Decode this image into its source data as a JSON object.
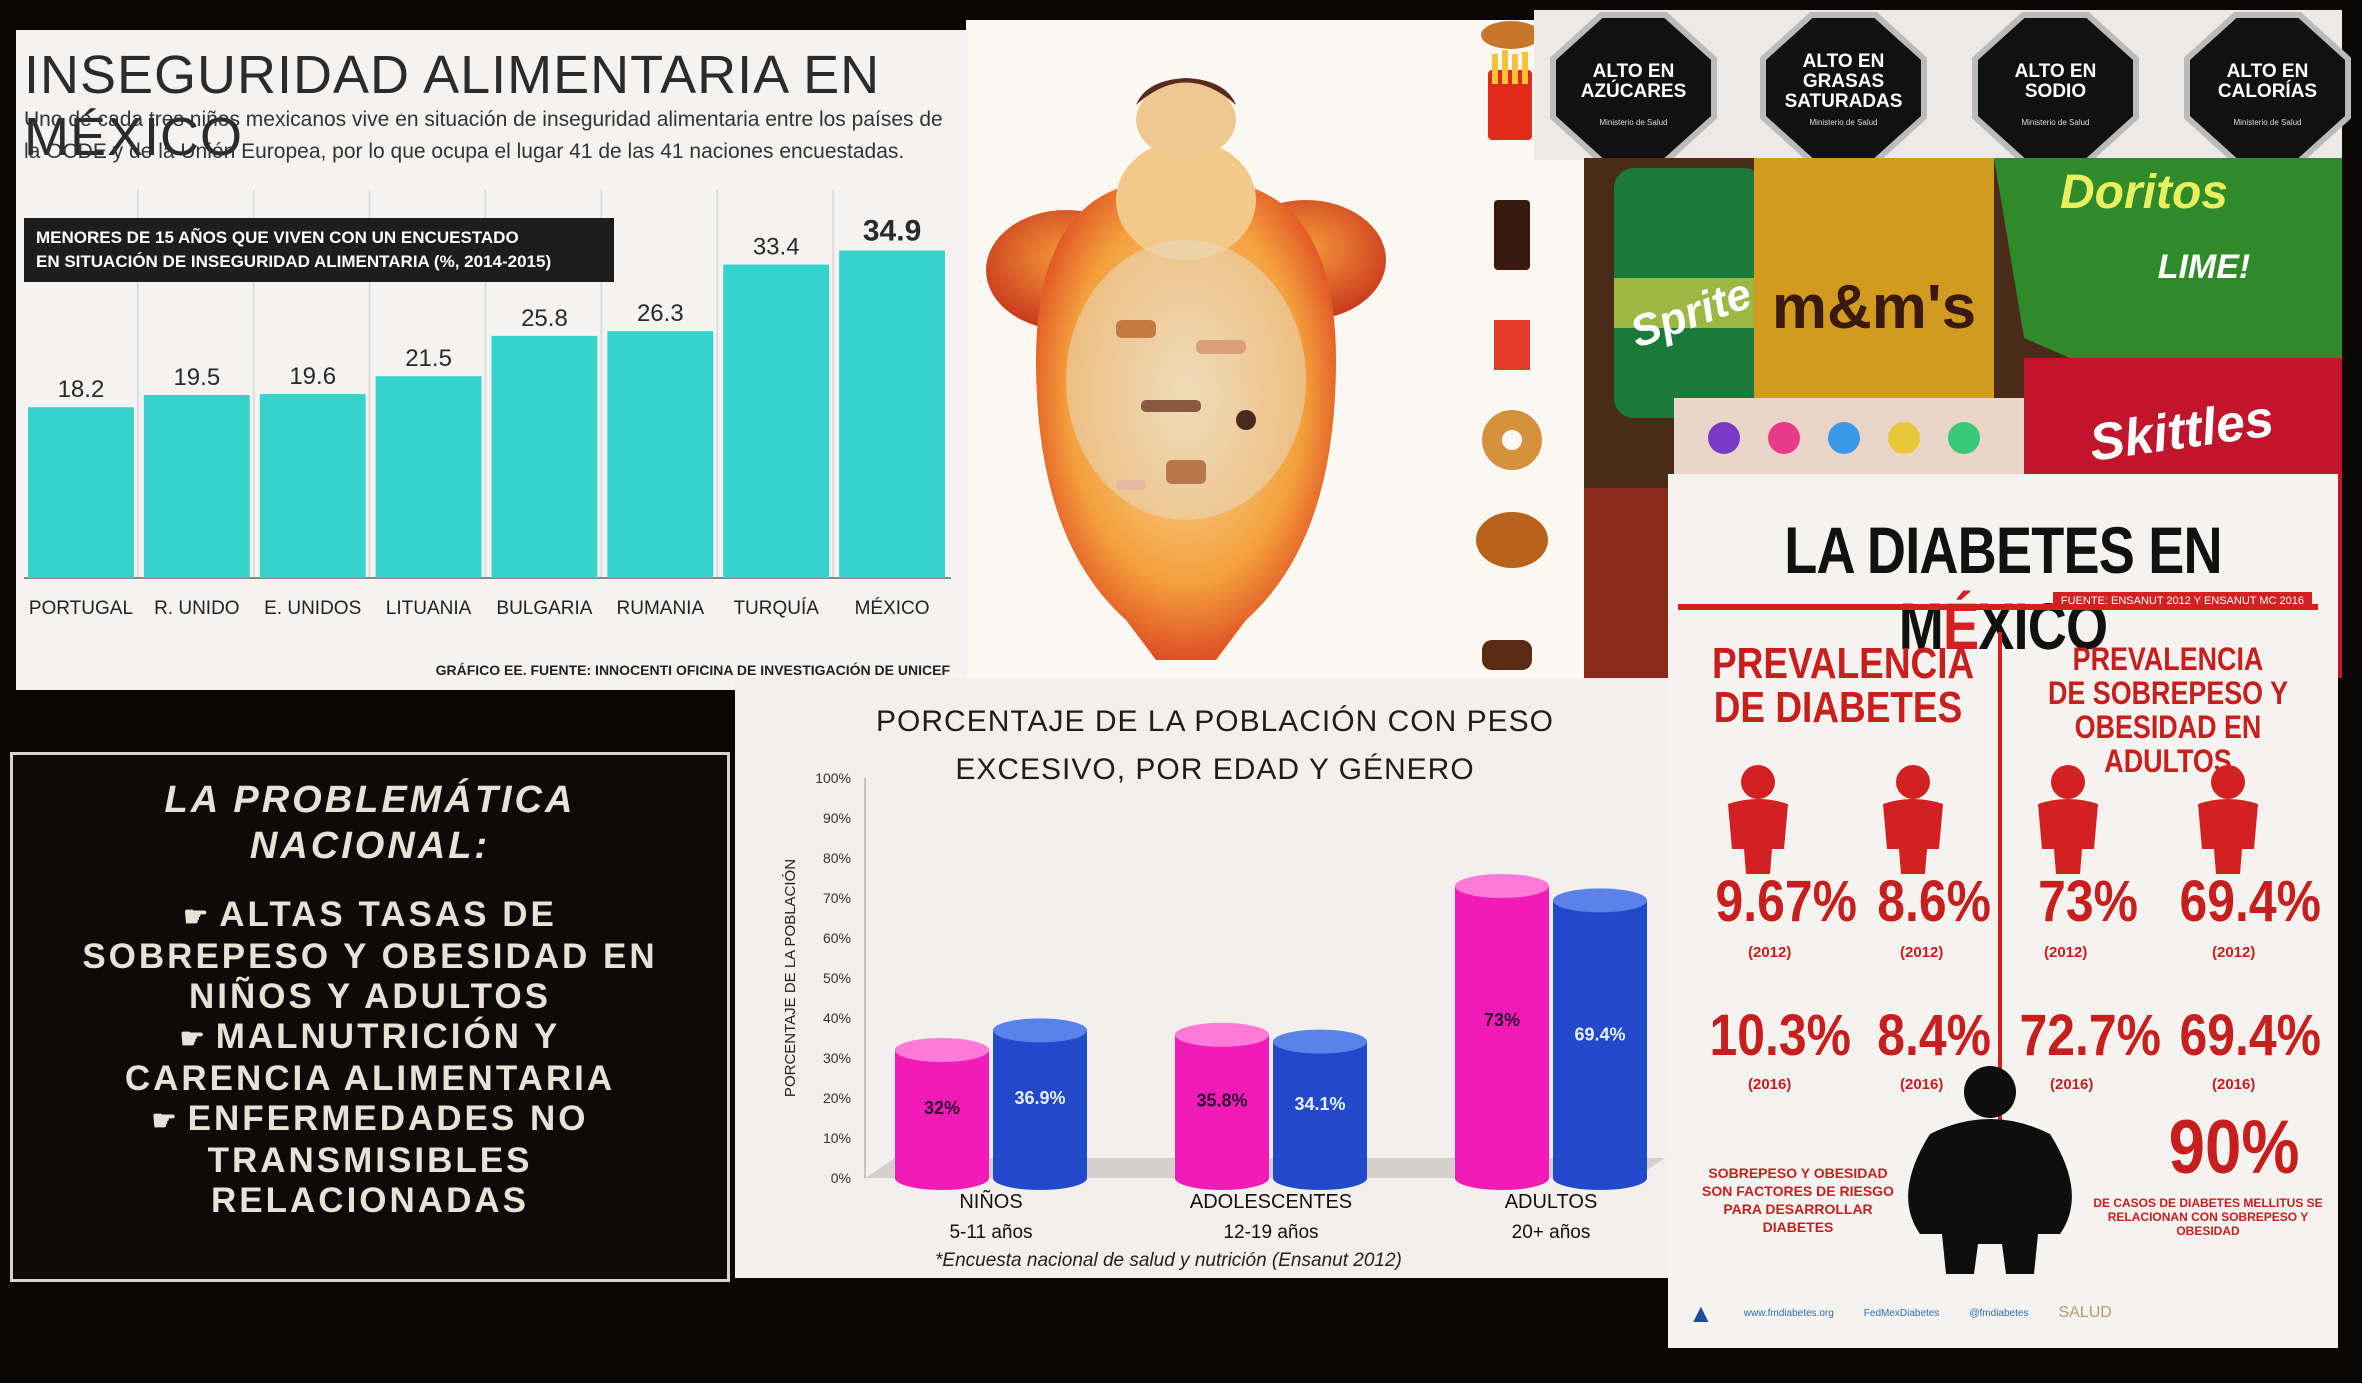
{
  "insecurity": {
    "title": "INSEGURIDAD ALIMENTARIA EN MÉXICO",
    "subtitle": "Uno de cada tres niños mexicanos vive en situación de inseguridad alimentaria entre los países de la OCDE y de la Unión Europea, por lo que ocupa el lugar 41 de las 41 naciones encuestadas.",
    "box_line1": "MENORES DE 15 AÑOS QUE VIVEN CON UN ENCUESTADO",
    "box_line2": "EN SITUACIÓN DE INSEGURIDAD ALIMENTARIA (%, 2014-2015)",
    "source": "GRÁFICO EE. FUENTE: INNOCENTI OFICINA DE INVESTIGACIÓN DE UNICEF",
    "bar_color": "#35d3cc"
  },
  "labels": {
    "octagons": [
      {
        "line1": "ALTO EN",
        "line2": "AZÚCARES",
        "sub": "Ministerio de Salud"
      },
      {
        "line1": "ALTO EN",
        "line2": "GRASAS",
        "line3": "SATURADAS",
        "sub": "Ministerio de Salud"
      },
      {
        "line1": "ALTO EN",
        "line2": "SODIO",
        "sub": "Ministerio de Salud"
      },
      {
        "line1": "ALTO EN",
        "line2": "CALORÍAS",
        "sub": "Ministerio de Salud"
      }
    ]
  },
  "junk": {
    "sprite": "Sprite",
    "mms": "m&m's",
    "skittles": "Skittles",
    "doritos": "Doritos",
    "lime": "LIME!"
  },
  "problem": {
    "title_line1": "LA PROBLEMÁTICA",
    "title_line2": "NACIONAL:",
    "items": [
      {
        "line1": "ALTAS TASAS DE",
        "line2": "SOBREPESO Y OBESIDAD EN",
        "line3": "NIÑOS Y ADULTOS"
      },
      {
        "line1": "MALNUTRICIÓN Y",
        "line2": "CARENCIA ALIMENTARIA"
      },
      {
        "line1": "ENFERMEDADES NO",
        "line2": "TRANSMISIBLES",
        "line3": "RELACIONADAS"
      }
    ],
    "hand_icon": "☛"
  },
  "weight": {
    "title_line1": "PORCENTAJE DE LA POBLACIÓN CON PESO",
    "title_line2": "EXCESIVO, POR EDAD Y GÉNERO",
    "source": "*Encuesta nacional de salud y nutrición (Ensanut 2012)",
    "colors": {
      "pink": "#f21bb8",
      "blue": "#2149c9"
    }
  },
  "diabetes": {
    "title_pre": "LA DIABETES EN M",
    "title_accent": "É",
    "title_post": "XICO",
    "source": "FUENTE: ENSANUT 2012 Y ENSANUT MC 2016",
    "head_left_line1": "PREVALENCIA",
    "head_left_line2": "DE DIABETES",
    "head_right_line1": "PREVALENCIA",
    "head_right_line2": "DE SOBREPESO Y",
    "head_right_line3": "OBESIDAD EN ADULTOS",
    "values_2012": [
      "9.67%",
      "8.6%",
      "73%",
      "69.4%"
    ],
    "values_2016": [
      "10.3%",
      "8.4%",
      "72.7%",
      "69.4%"
    ],
    "year_2012": "(2012)",
    "year_2016": "(2016)",
    "foot_left": "SOBREPESO Y OBESIDAD SON FACTORES DE RIESGO PARA DESARROLLAR DIABETES",
    "big_value": "90%",
    "foot_right": "DE CASOS DE DIABETES MELLITUS SE RELACIONAN CON SOBREPESO Y OBESIDAD",
    "footer_web": "www.fmdiabetes.org",
    "footer_fb": "FedMexDiabetes",
    "footer_tw": "@fmdiabetes",
    "footer_salud": "SALUD",
    "accent": "#d32020"
  },
  "chart_data": [
    {
      "type": "bar",
      "title": "MENORES DE 15 AÑOS QUE VIVEN CON UN ENCUESTADO EN SITUACIÓN DE INSEGURIDAD ALIMENTARIA (%, 2014-2015)",
      "categories": [
        "PORTUGAL",
        "R. UNIDO",
        "E. UNIDOS",
        "LITUANIA",
        "BULGARIA",
        "RUMANIA",
        "TURQUÍA",
        "MÉXICO"
      ],
      "values": [
        18.2,
        19.5,
        19.6,
        21.5,
        25.8,
        26.3,
        33.4,
        34.9
      ],
      "value_labels": [
        "18.2",
        "19.5",
        "19.6",
        "21.5",
        "25.8",
        "26.3",
        "33.4",
        "34.9"
      ],
      "ylim": [
        0,
        40
      ],
      "grid": true
    },
    {
      "type": "bar",
      "title": "PORCENTAJE DE LA POBLACIÓN CON PESO EXCESIVO, POR EDAD Y GÉNERO",
      "ylabel": "PORCENTAJE DE LA POBLACIÓN",
      "categories": [
        "NIÑOS",
        "ADOLESCENTES",
        "ADULTOS"
      ],
      "category_sub": [
        "5-11 años",
        "12-19 años",
        "20+ años"
      ],
      "series": [
        {
          "values": [
            32,
            35.8,
            73
          ],
          "labels": [
            "32%",
            "35.8%",
            "73%"
          ]
        },
        {
          "values": [
            36.9,
            34.1,
            69.4
          ],
          "labels": [
            "36.9%",
            "34.1%",
            "69.4%"
          ]
        }
      ],
      "yticks": [
        "0%",
        "10%",
        "20%",
        "30%",
        "40%",
        "50%",
        "60%",
        "70%",
        "80%",
        "90%",
        "100%"
      ],
      "ylim": [
        0,
        100
      ]
    }
  ]
}
